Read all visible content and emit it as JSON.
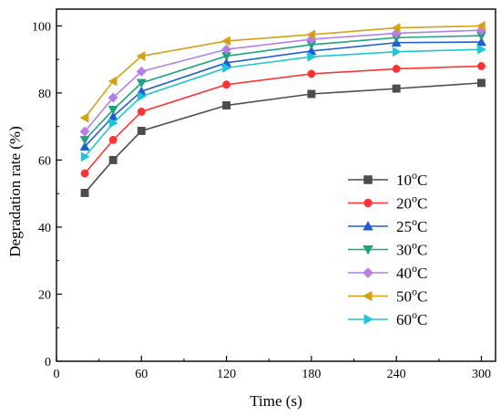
{
  "chart_data": {
    "type": "line",
    "title": "",
    "xlabel": "Time (s)",
    "ylabel": "Degradation rate (%)",
    "xlim": [
      0,
      310
    ],
    "ylim": [
      0,
      105
    ],
    "x": [
      20,
      40,
      60,
      120,
      180,
      240,
      300
    ],
    "xticks": [
      0,
      60,
      120,
      180,
      240,
      300
    ],
    "yticks": [
      0,
      20,
      40,
      60,
      80,
      100
    ],
    "legend_position": "bottom-right",
    "grid": false,
    "series": [
      {
        "name": "10",
        "unit": "oC",
        "marker": "square",
        "color": "#4d4d4d",
        "values": [
          50.2,
          60.0,
          68.7,
          76.3,
          79.7,
          81.3,
          83.0
        ]
      },
      {
        "name": "20",
        "unit": "oC",
        "marker": "circle",
        "color": "#ff3333",
        "values": [
          56.0,
          66.0,
          74.4,
          82.5,
          85.7,
          87.2,
          88.0
        ]
      },
      {
        "name": "25",
        "unit": "oC",
        "marker": "triangle-up",
        "color": "#1f5fd6",
        "values": [
          64.0,
          73.0,
          80.5,
          89.0,
          92.5,
          95.0,
          95.2
        ]
      },
      {
        "name": "30",
        "unit": "oC",
        "marker": "triangle-down",
        "color": "#1fa37e",
        "values": [
          66.0,
          75.0,
          83.0,
          91.0,
          94.4,
          96.5,
          97.1
        ]
      },
      {
        "name": "40",
        "unit": "oC",
        "marker": "diamond",
        "color": "#b57fe8",
        "values": [
          68.5,
          78.6,
          86.4,
          93.0,
          96.0,
          97.8,
          98.7
        ]
      },
      {
        "name": "50",
        "unit": "oC",
        "marker": "triangle-left",
        "color": "#d4a017",
        "values": [
          72.6,
          83.5,
          91.0,
          95.5,
          97.4,
          99.4,
          100.0
        ]
      },
      {
        "name": "60",
        "unit": "oC",
        "marker": "triangle-right",
        "color": "#1fc6d6",
        "values": [
          61.0,
          71.0,
          79.0,
          87.5,
          90.8,
          92.3,
          93.0
        ]
      }
    ]
  }
}
